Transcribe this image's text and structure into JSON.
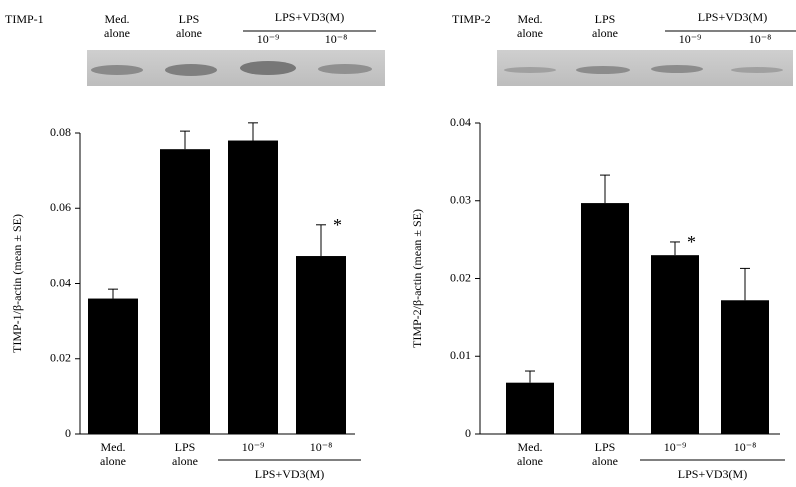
{
  "chart_data": [
    {
      "type": "bar",
      "blot_label": "TIMP-1",
      "y_label": "TIMP-1/β-actin (mean ± SE)",
      "categories": [
        "Med. alone",
        "LPS alone",
        "10⁻⁹",
        "10⁻⁸"
      ],
      "group_label": "LPS+VD3(M)",
      "values": [
        0.036,
        0.0757,
        0.078,
        0.0473
      ],
      "errors": [
        0.0025,
        0.0048,
        0.0047,
        0.0083
      ],
      "significance_marks": [
        null,
        null,
        null,
        "*"
      ],
      "color": "#000000",
      "ylim": [
        0,
        0.08
      ],
      "yticks": [
        0,
        0.02,
        0.04,
        0.06,
        0.08
      ]
    },
    {
      "type": "bar",
      "blot_label": "TIMP-2",
      "y_label": "TIMP-2/β-actin (mean ± SE)",
      "categories": [
        "Med. alone",
        "LPS alone",
        "10⁻⁹",
        "10⁻⁸"
      ],
      "group_label": "LPS+VD3(M)",
      "values": [
        0.0066,
        0.0297,
        0.023,
        0.0172
      ],
      "errors": [
        0.0015,
        0.0036,
        0.0017,
        0.0041
      ],
      "significance_marks": [
        null,
        null,
        "*",
        null
      ],
      "color": "#000000",
      "ylim": [
        0,
        0.04
      ],
      "yticks": [
        0,
        0.01,
        0.02,
        0.03,
        0.04
      ]
    }
  ]
}
